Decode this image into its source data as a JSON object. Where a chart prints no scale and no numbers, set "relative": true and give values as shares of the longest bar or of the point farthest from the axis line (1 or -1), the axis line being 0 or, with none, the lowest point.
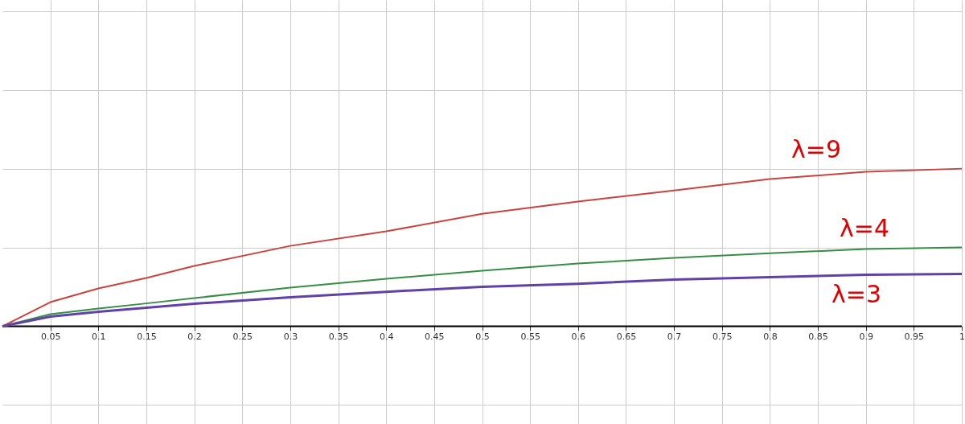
{
  "chart_data": {
    "type": "line",
    "relative": true,
    "x": [
      0,
      0.05,
      0.1,
      0.15,
      0.2,
      0.3,
      0.4,
      0.5,
      0.6,
      0.7,
      0.8,
      0.9,
      1
    ],
    "series": [
      {
        "name": "λ=9",
        "color": "#c74440",
        "values": [
          0,
          0.153,
          0.24,
          0.306,
          0.383,
          0.51,
          0.602,
          0.714,
          0.791,
          0.862,
          0.934,
          0.98,
          1
        ]
      },
      {
        "name": "λ=4",
        "color": "#388c46",
        "values": [
          0,
          0.077,
          0.112,
          0.145,
          0.179,
          0.245,
          0.301,
          0.352,
          0.398,
          0.434,
          0.464,
          0.49,
          0.5
        ]
      },
      {
        "name": "λ=3",
        "color": "#6042a6",
        "values": [
          0,
          0.061,
          0.092,
          0.118,
          0.143,
          0.184,
          0.219,
          0.25,
          0.27,
          0.296,
          0.311,
          0.327,
          0.332
        ]
      }
    ],
    "xlim": [
      0,
      1
    ],
    "xticks": [
      0.05,
      0.1,
      0.15,
      0.2,
      0.25,
      0.3,
      0.35,
      0.4,
      0.45,
      0.5,
      0.55,
      0.6,
      0.65,
      0.7,
      0.75,
      0.8,
      0.85,
      0.9,
      0.95,
      1
    ],
    "grid": true,
    "marker": "none",
    "line_style": "solid"
  }
}
